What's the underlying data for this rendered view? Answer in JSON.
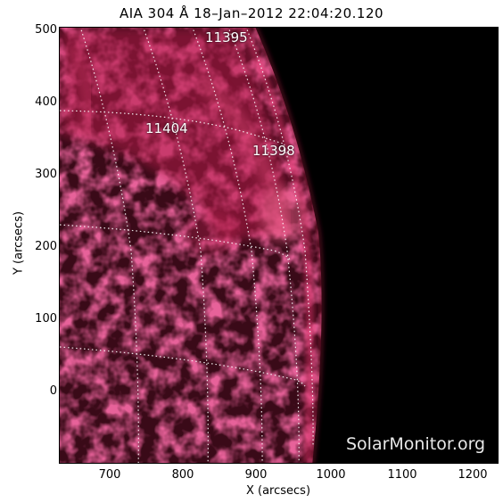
{
  "title": "AIA 304 Å 18–Jan–2012 22:04:20.120",
  "x_axis": {
    "label": "X (arcsecs)",
    "ticks": [
      "700",
      "800",
      "900",
      "1000",
      "1100",
      "1200"
    ]
  },
  "y_axis": {
    "label": "Y (arcsecs)",
    "ticks": [
      "500",
      "400",
      "300",
      "200",
      "100",
      "0"
    ]
  },
  "active_regions": [
    "11395",
    "11404",
    "11398"
  ],
  "watermark": "SolarMonitor.org",
  "colors": {
    "solar_disk": "#c11d4d",
    "disk_dark": "#2a0610",
    "background": "#000000",
    "grid": "#ffffff"
  }
}
